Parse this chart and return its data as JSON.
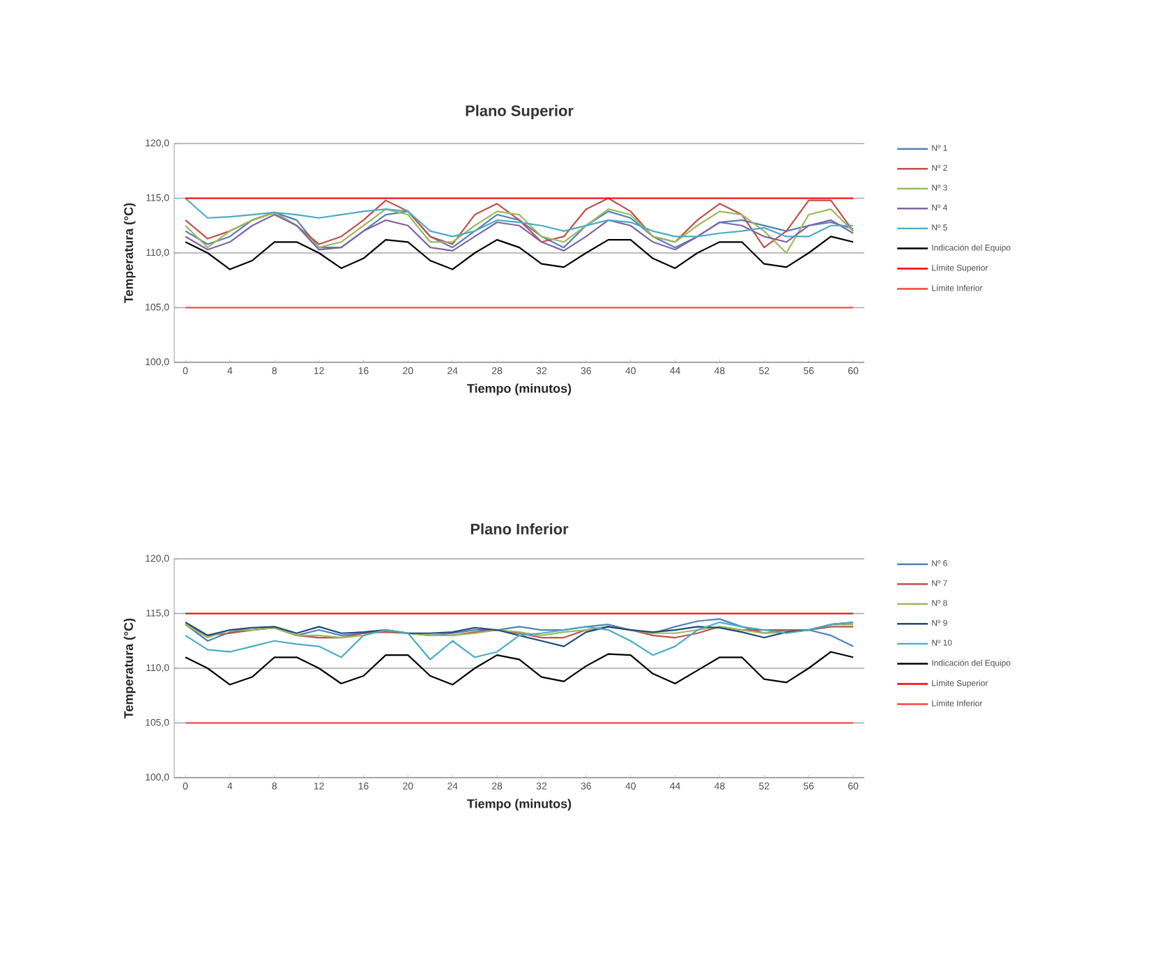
{
  "chart_data": [
    {
      "type": "line",
      "title": "Plano Superior",
      "xlabel": "Tiempo (minutos)",
      "ylabel": "Temperatura (°C)",
      "x": [
        0,
        2,
        4,
        6,
        8,
        10,
        12,
        14,
        16,
        18,
        20,
        22,
        24,
        26,
        28,
        30,
        32,
        34,
        36,
        38,
        40,
        42,
        44,
        46,
        48,
        50,
        52,
        54,
        56,
        58,
        60
      ],
      "xlim": [
        -1,
        61
      ],
      "xticks": [
        0,
        4,
        8,
        12,
        16,
        20,
        24,
        28,
        32,
        36,
        40,
        44,
        48,
        52,
        56,
        60
      ],
      "ylim": [
        100,
        120
      ],
      "yticks": [
        {
          "value": 100,
          "label": "100,0"
        },
        {
          "value": 105,
          "label": "105,0"
        },
        {
          "value": 110,
          "label": "110,0"
        },
        {
          "value": 115,
          "label": "115,0"
        },
        {
          "value": 120,
          "label": "120,0"
        }
      ],
      "grid": "y",
      "legend": "right",
      "marker": "none",
      "line_style": "solid",
      "series": [
        {
          "name": "Nº 1",
          "color": "#4f81bd",
          "values": [
            112,
            110.8,
            111.5,
            113,
            113.7,
            113,
            110.5,
            110.5,
            112,
            113.5,
            113.8,
            111.5,
            110.5,
            112,
            113.5,
            113,
            111.5,
            110.5,
            112.5,
            113.8,
            113.2,
            111.5,
            110.5,
            111.5,
            112.8,
            113,
            112.5,
            112,
            112.5,
            112.8,
            112.2
          ]
        },
        {
          "name": "Nº 2",
          "color": "#c0504d",
          "values": [
            113,
            111.3,
            112,
            113,
            113.7,
            112.5,
            110.8,
            111.5,
            113,
            114.8,
            113.8,
            111.5,
            110.8,
            113.5,
            114.5,
            113,
            111,
            111.5,
            114,
            115,
            113.8,
            111.5,
            111,
            113,
            114.5,
            113.5,
            110.5,
            112,
            114.8,
            114.8,
            112
          ]
        },
        {
          "name": "Nº 3",
          "color": "#9bbb59",
          "values": [
            112.5,
            110.5,
            112,
            113,
            113.7,
            112.5,
            110.5,
            111,
            112.5,
            114,
            113.5,
            111,
            111,
            112.5,
            113.8,
            113.5,
            111.5,
            111,
            112.5,
            114,
            113.5,
            111.5,
            111,
            112.5,
            113.8,
            113.5,
            112,
            110,
            113.5,
            114,
            112
          ]
        },
        {
          "name": "Nº 4",
          "color": "#8064a2",
          "values": [
            111.5,
            110.3,
            111,
            112.5,
            113.5,
            112.5,
            110.3,
            110.5,
            112,
            113,
            112.5,
            110.5,
            110.2,
            111.5,
            112.8,
            112.5,
            111,
            110.2,
            111.5,
            113,
            112.5,
            111,
            110.3,
            111.5,
            112.8,
            112.5,
            111.5,
            111,
            112.5,
            113,
            111.8
          ]
        },
        {
          "name": "Nº 5",
          "color": "#4bacc6",
          "values": [
            115,
            113.2,
            113.3,
            113.5,
            113.7,
            113.5,
            113.2,
            113.5,
            113.8,
            114,
            113.8,
            112,
            111.5,
            112,
            113,
            112.8,
            112.5,
            112,
            112.5,
            113,
            112.8,
            112,
            111.5,
            111.5,
            111.8,
            112,
            112.3,
            111.5,
            111.5,
            112.5,
            112.5
          ]
        },
        {
          "name": "Indicación del Equipo",
          "color": "#000000",
          "values": [
            111,
            110,
            108.5,
            109.3,
            111,
            111,
            110,
            108.6,
            109.5,
            111.2,
            111,
            109.3,
            108.5,
            110,
            111.2,
            110.5,
            109,
            108.7,
            110,
            111.2,
            111.2,
            109.5,
            108.6,
            110,
            111,
            111,
            109,
            108.7,
            110,
            111.5,
            111
          ]
        },
        {
          "name": "Límite Superior",
          "color": "#ff0000",
          "values": [
            115,
            115,
            115,
            115,
            115,
            115,
            115,
            115,
            115,
            115,
            115,
            115,
            115,
            115,
            115,
            115,
            115,
            115,
            115,
            115,
            115,
            115,
            115,
            115,
            115,
            115,
            115,
            115,
            115,
            115,
            115
          ]
        },
        {
          "name": "Límite Inferior",
          "color": "#ff4040",
          "values": [
            105,
            105,
            105,
            105,
            105,
            105,
            105,
            105,
            105,
            105,
            105,
            105,
            105,
            105,
            105,
            105,
            105,
            105,
            105,
            105,
            105,
            105,
            105,
            105,
            105,
            105,
            105,
            105,
            105,
            105,
            105
          ]
        }
      ]
    },
    {
      "type": "line",
      "title": "Plano Inferior",
      "xlabel": "Tiempo (minutos)",
      "ylabel": "Temperatura (°C)",
      "x": [
        0,
        2,
        4,
        6,
        8,
        10,
        12,
        14,
        16,
        18,
        20,
        22,
        24,
        26,
        28,
        30,
        32,
        34,
        36,
        38,
        40,
        42,
        44,
        46,
        48,
        50,
        52,
        54,
        56,
        58,
        60
      ],
      "xlim": [
        -1,
        61
      ],
      "xticks": [
        0,
        4,
        8,
        12,
        16,
        20,
        24,
        28,
        32,
        36,
        40,
        44,
        48,
        52,
        56,
        60
      ],
      "ylim": [
        100,
        120
      ],
      "yticks": [
        {
          "value": 100,
          "label": "100,0"
        },
        {
          "value": 105,
          "label": "105,0"
        },
        {
          "value": 110,
          "label": "110,0"
        },
        {
          "value": 115,
          "label": "115,0"
        },
        {
          "value": 120,
          "label": "120,0"
        }
      ],
      "grid": "y",
      "legend": "right",
      "marker": "none",
      "line_style": "solid",
      "series": [
        {
          "name": "Nº 6",
          "color": "#4f81bd",
          "values": [
            114,
            112.5,
            113.3,
            113.5,
            113.7,
            113,
            113.5,
            113,
            113.2,
            113.5,
            113.2,
            113,
            113.2,
            113.5,
            113.5,
            113.8,
            113.5,
            113.5,
            113.8,
            114,
            113.5,
            113.2,
            113.8,
            114.3,
            114.5,
            113.8,
            113.2,
            113.5,
            113.5,
            113,
            112
          ]
        },
        {
          "name": "Nº 7",
          "color": "#c0504d",
          "values": [
            114,
            113,
            113.2,
            113.5,
            113.7,
            113,
            112.8,
            112.8,
            113.2,
            113.3,
            113.2,
            113,
            113,
            113.3,
            113.5,
            113.2,
            112.8,
            112.8,
            113.5,
            113.8,
            113.5,
            113,
            112.8,
            113.2,
            113.8,
            113.5,
            113.5,
            113.5,
            113.5,
            113.8,
            113.8
          ]
        },
        {
          "name": "Nº 8",
          "color": "#9bbb59",
          "values": [
            114,
            112.8,
            113.5,
            113.5,
            113.7,
            113,
            113,
            112.8,
            113,
            113.5,
            113.2,
            113,
            113,
            113.2,
            113.5,
            113.3,
            113,
            113.3,
            113.5,
            113.8,
            113.5,
            113.2,
            113.2,
            113.5,
            113.8,
            113.5,
            113.2,
            113.3,
            113.5,
            114,
            114
          ]
        },
        {
          "name": "Nº 9",
          "color": "#1f497d",
          "values": [
            114.2,
            113,
            113.5,
            113.7,
            113.8,
            113.2,
            113.8,
            113.2,
            113.3,
            113.5,
            113.2,
            113.2,
            113.3,
            113.7,
            113.5,
            113,
            112.5,
            112,
            113.3,
            113.8,
            113.5,
            113.3,
            113.5,
            113.8,
            113.7,
            113.3,
            112.8,
            113.3,
            113.5,
            114,
            114.2
          ]
        },
        {
          "name": "Nº 10",
          "color": "#4bacc6",
          "values": [
            113,
            111.7,
            111.5,
            112,
            112.5,
            112.2,
            112,
            111,
            113,
            113.5,
            113.2,
            110.8,
            112.5,
            111,
            111.5,
            113,
            113.2,
            113.5,
            113.8,
            113.5,
            112.5,
            111.2,
            112,
            113.5,
            114.2,
            113.8,
            113.5,
            113.2,
            113.5,
            114,
            114.2
          ]
        },
        {
          "name": "Indicación del Equipo",
          "color": "#000000",
          "values": [
            111,
            110,
            108.5,
            109.2,
            111,
            111,
            110,
            108.6,
            109.3,
            111.2,
            111.2,
            109.3,
            108.5,
            110,
            111.2,
            110.8,
            109.2,
            108.8,
            110.2,
            111.3,
            111.2,
            109.5,
            108.6,
            109.8,
            111,
            111,
            109,
            108.7,
            110,
            111.5,
            111
          ]
        },
        {
          "name": "Límite Superior",
          "color": "#ff0000",
          "values": [
            115,
            115,
            115,
            115,
            115,
            115,
            115,
            115,
            115,
            115,
            115,
            115,
            115,
            115,
            115,
            115,
            115,
            115,
            115,
            115,
            115,
            115,
            115,
            115,
            115,
            115,
            115,
            115,
            115,
            115,
            115
          ]
        },
        {
          "name": "Límite Inferior",
          "color": "#ff4040",
          "values": [
            105,
            105,
            105,
            105,
            105,
            105,
            105,
            105,
            105,
            105,
            105,
            105,
            105,
            105,
            105,
            105,
            105,
            105,
            105,
            105,
            105,
            105,
            105,
            105,
            105,
            105,
            105,
            105,
            105,
            105,
            105
          ]
        }
      ]
    }
  ]
}
